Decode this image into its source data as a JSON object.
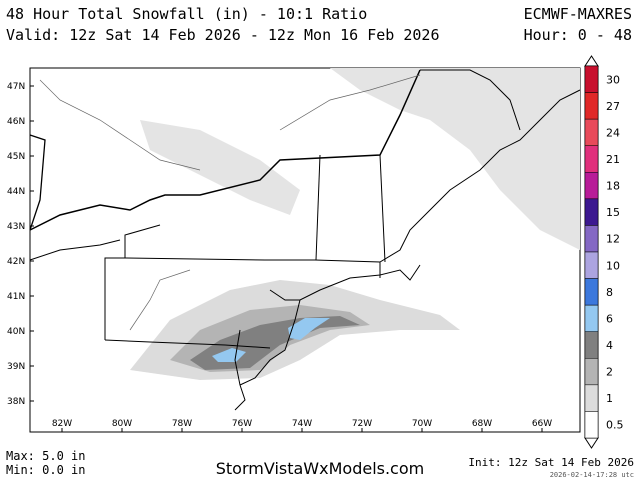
{
  "header": {
    "title": "48 Hour Total Snowfall (in) - 10:1 Ratio",
    "model": "ECMWF-MAXRES",
    "valid": "Valid: 12z Sat 14 Feb 2026 - 12z Mon 16 Feb 2026",
    "hour": "Hour: 0 - 48"
  },
  "map": {
    "lat_labels": [
      "47N",
      "46N",
      "45N",
      "44N",
      "43N",
      "42N",
      "41N",
      "40N",
      "39N",
      "38N"
    ],
    "lon_labels": [
      "82W",
      "80W",
      "78W",
      "76W",
      "74W",
      "72W",
      "70W",
      "68W",
      "66W"
    ]
  },
  "colorbar": {
    "levels": [
      {
        "label": "30",
        "color": "#c8102e"
      },
      {
        "label": "27",
        "color": "#e02828"
      },
      {
        "label": "24",
        "color": "#e84a5a"
      },
      {
        "label": "21",
        "color": "#e0307c"
      },
      {
        "label": "18",
        "color": "#b81c98"
      },
      {
        "label": "15",
        "color": "#3c1890"
      },
      {
        "label": "12",
        "color": "#8468c4"
      },
      {
        "label": "10",
        "color": "#aca4e0"
      },
      {
        "label": "8",
        "color": "#3c78dc"
      },
      {
        "label": "6",
        "color": "#94c8f0"
      },
      {
        "label": "4",
        "color": "#808080"
      },
      {
        "label": "2",
        "color": "#b4b4b4"
      },
      {
        "label": "1",
        "color": "#dcdcdc"
      },
      {
        "label": "0.5",
        "color": "#ffffff"
      }
    ]
  },
  "footer": {
    "max": "Max: 5.0 in",
    "min": "Min: 0.0 in",
    "site": "StormVistaWxModels.com",
    "init": "Init: 12z Sat 14 Feb 2026",
    "stamp": "2026-02-14-17:28 utc"
  }
}
